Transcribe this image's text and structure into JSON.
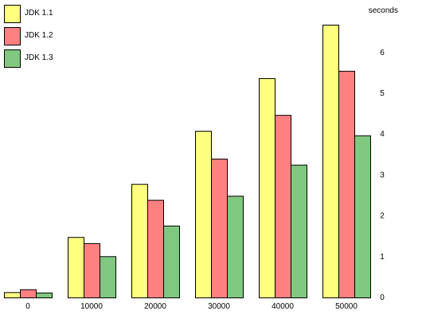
{
  "chart_data": {
    "type": "bar",
    "ylabel": "seconds",
    "categories": [
      "0",
      "10000",
      "20000",
      "30000",
      "40000",
      "50000"
    ],
    "series": [
      {
        "name": "JDK 1.1",
        "color": "#ffff80",
        "values": [
          0.13,
          1.48,
          2.78,
          4.08,
          5.37,
          6.68
        ]
      },
      {
        "name": "JDK 1.2",
        "color": "#ff8080",
        "values": [
          0.2,
          1.33,
          2.39,
          3.4,
          4.47,
          5.55
        ]
      },
      {
        "name": "JDK 1.3",
        "color": "#80c880",
        "values": [
          0.12,
          1.01,
          1.76,
          2.49,
          3.25,
          3.97
        ]
      }
    ],
    "ylim": [
      0,
      7
    ],
    "yticks": [
      "0",
      "1",
      "2",
      "3",
      "4",
      "5",
      "6"
    ],
    "grid": false,
    "legend_position": "top-left"
  }
}
